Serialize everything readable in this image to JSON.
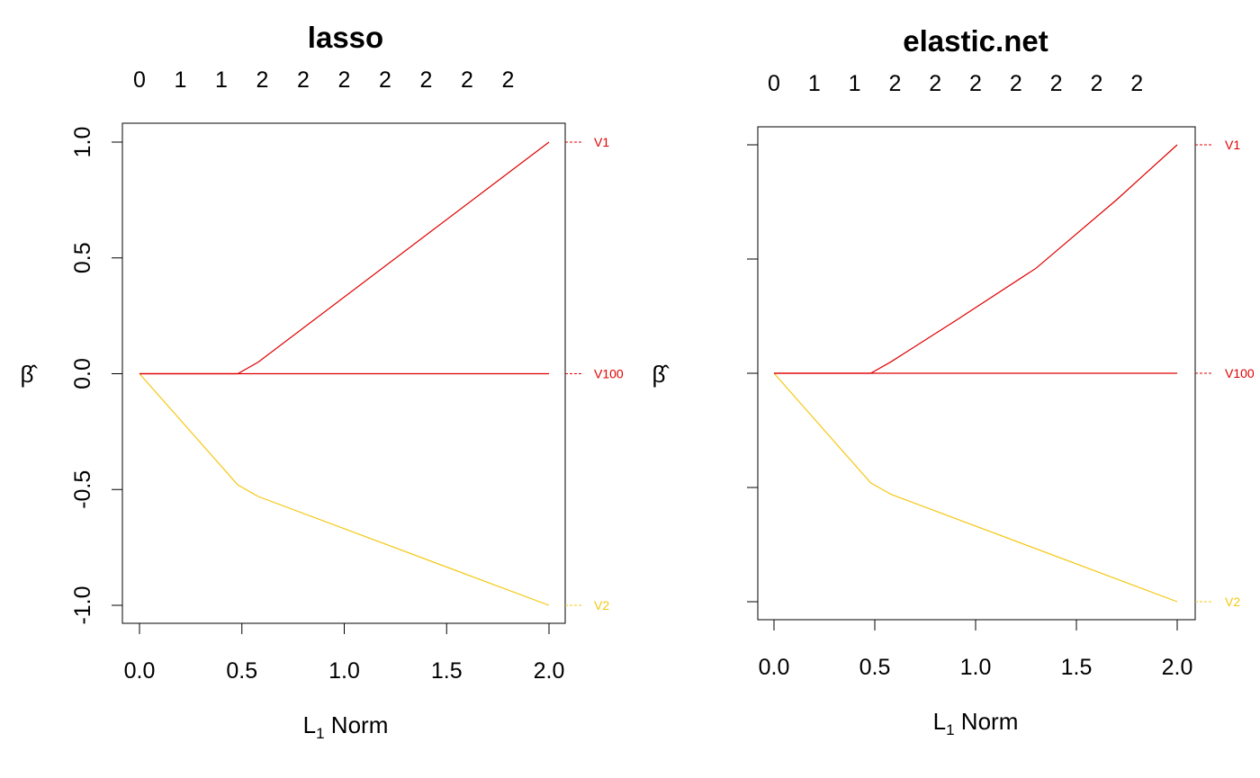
{
  "charts": [
    {
      "title": "lasso",
      "xlabel_main": "L",
      "xlabel_sub": "1",
      "xlabel_rest": " Norm",
      "ylabel": "β̂",
      "x_ticks": [
        "0.0",
        "0.5",
        "1.0",
        "1.5",
        "2.0"
      ],
      "y_ticks": [
        "-1.0",
        "-0.5",
        "0.0",
        "0.5",
        "1.0"
      ],
      "top_ticks": [
        "0",
        "1",
        "1",
        "2",
        "2",
        "2",
        "2",
        "2",
        "2",
        "2"
      ]
    },
    {
      "title": "elastic.net",
      "xlabel_main": "L",
      "xlabel_sub": "1",
      "xlabel_rest": " Norm",
      "ylabel": "β̂",
      "x_ticks": [
        "0.0",
        "0.5",
        "1.0",
        "1.5",
        "2.0"
      ],
      "y_ticks": [
        "-1.0",
        "-0.5",
        "0.0",
        "0.5",
        "1.0"
      ],
      "top_ticks": [
        "0",
        "1",
        "1",
        "2",
        "2",
        "2",
        "2",
        "2",
        "2",
        "2"
      ]
    }
  ],
  "chart_data": [
    {
      "type": "line",
      "title": "lasso",
      "xlabel": "L1 Norm",
      "ylabel": "β̂",
      "xlim": [
        0,
        2.0
      ],
      "ylim": [
        -1.0,
        1.0
      ],
      "x_ticks": [
        0.0,
        0.5,
        1.0,
        1.5,
        2.0
      ],
      "y_ticks": [
        -1.0,
        -0.5,
        0.0,
        0.5,
        1.0
      ],
      "top_axis": {
        "positions": [
          0.0,
          0.2,
          0.4,
          0.6,
          0.8,
          1.0,
          1.2,
          1.4,
          1.6,
          1.8
        ],
        "labels": [
          "0",
          "1",
          "1",
          "2",
          "2",
          "2",
          "2",
          "2",
          "2",
          "2"
        ]
      },
      "grid": false,
      "series": [
        {
          "name": "V1",
          "color": "#DF0000",
          "x": [
            0.0,
            0.48,
            0.58,
            2.0
          ],
          "y": [
            0.0,
            0.0,
            0.05,
            1.0
          ]
        },
        {
          "name": "V2",
          "color": "#F5C710",
          "x": [
            0.0,
            0.48,
            0.58,
            2.0
          ],
          "y": [
            0.0,
            -0.48,
            -0.53,
            -1.0
          ]
        },
        {
          "name": "V100",
          "color": "#DF0000",
          "x": [
            0.0,
            2.0
          ],
          "y": [
            0.0,
            0.0
          ]
        }
      ],
      "end_labels": [
        {
          "text": "V1",
          "y": 1.0,
          "color": "#DF0000"
        },
        {
          "text": "V2",
          "y": -1.0,
          "color": "#F5C710"
        },
        {
          "text": "V100",
          "y": 0.0,
          "color": "#DF0000"
        }
      ]
    },
    {
      "type": "line",
      "title": "elastic.net",
      "xlabel": "L1 Norm",
      "ylabel": "β̂",
      "xlim": [
        0,
        2.0
      ],
      "ylim": [
        -1.0,
        1.0
      ],
      "x_ticks": [
        0.0,
        0.5,
        1.0,
        1.5,
        2.0
      ],
      "y_ticks": [
        -1.0,
        -0.5,
        0.0,
        0.5,
        1.0
      ],
      "top_axis": {
        "positions": [
          0.0,
          0.2,
          0.4,
          0.6,
          0.8,
          1.0,
          1.2,
          1.4,
          1.6,
          1.8
        ],
        "labels": [
          "0",
          "1",
          "1",
          "2",
          "2",
          "2",
          "2",
          "2",
          "2",
          "2"
        ]
      },
      "grid": false,
      "series": [
        {
          "name": "V1",
          "color": "#DF0000",
          "x": [
            0.0,
            0.48,
            0.58,
            0.9,
            1.3,
            1.7,
            2.0
          ],
          "y": [
            0.0,
            0.0,
            0.05,
            0.23,
            0.46,
            0.76,
            1.0
          ]
        },
        {
          "name": "V2",
          "color": "#F5C710",
          "x": [
            0.0,
            0.48,
            0.58,
            2.0
          ],
          "y": [
            0.0,
            -0.48,
            -0.53,
            -1.0
          ]
        },
        {
          "name": "V100",
          "color": "#DF0000",
          "x": [
            0.0,
            2.0
          ],
          "y": [
            0.0,
            0.0
          ]
        }
      ],
      "end_labels": [
        {
          "text": "V1",
          "y": 1.0,
          "color": "#DF0000"
        },
        {
          "text": "V2",
          "y": -1.0,
          "color": "#F5C710"
        },
        {
          "text": "V100",
          "y": 0.0,
          "color": "#DF0000"
        }
      ]
    }
  ]
}
